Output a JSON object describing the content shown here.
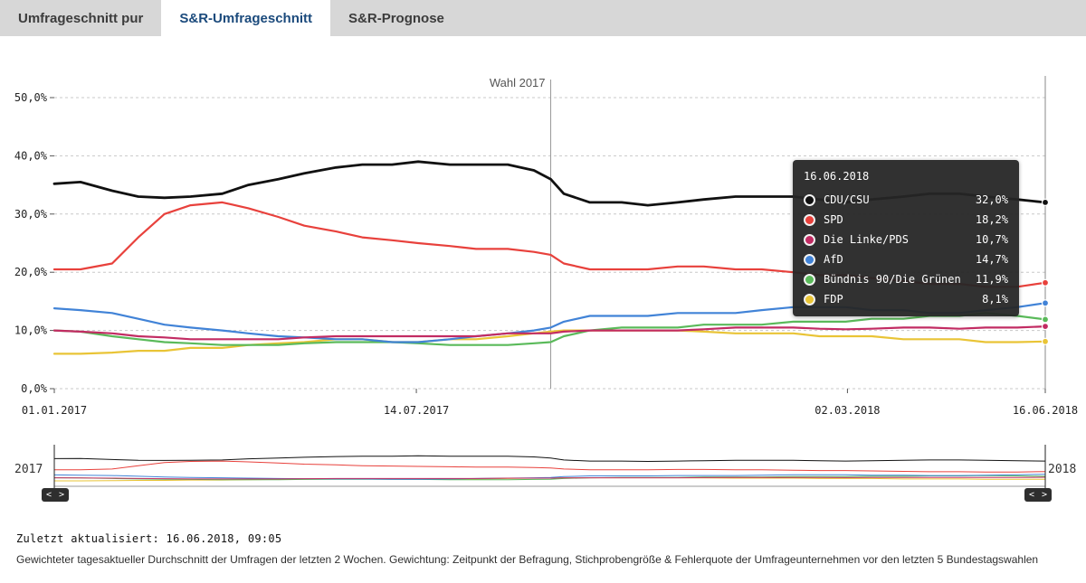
{
  "tabs": [
    {
      "label": "Umfrageschnitt pur",
      "active": false
    },
    {
      "label": "S&R-Umfrageschnitt",
      "active": true
    },
    {
      "label": "S&R-Prognose",
      "active": false
    }
  ],
  "chart_data": {
    "type": "line",
    "title": "",
    "xlabel": "",
    "ylabel": "",
    "ylim": [
      0,
      50
    ],
    "grid": "dashed horizontal",
    "legend_position": "floating tooltip top-right",
    "y_ticks": [
      {
        "value": 0,
        "label": "0,0%"
      },
      {
        "value": 10,
        "label": "10,0%"
      },
      {
        "value": 20,
        "label": "20,0%"
      },
      {
        "value": 30,
        "label": "30,0%"
      },
      {
        "value": 40,
        "label": "40,0%"
      },
      {
        "value": 50,
        "label": "50,0%"
      }
    ],
    "x_range": [
      "2017-01-01",
      "2018-06-16"
    ],
    "x_ticks": [
      {
        "date": "2017-01-01",
        "label": "01.01.2017"
      },
      {
        "date": "2017-07-14",
        "label": "14.07.2017"
      },
      {
        "date": "2018-03-02",
        "label": "02.03.2018"
      },
      {
        "date": "2018-06-16",
        "label": "16.06.2018"
      }
    ],
    "annotation": {
      "date": "2017-09-24",
      "label": "Wahl 2017"
    },
    "hover_date": "2018-06-16",
    "x": [
      "2017-01-01",
      "2017-01-15",
      "2017-02-01",
      "2017-02-15",
      "2017-03-01",
      "2017-03-15",
      "2017-04-01",
      "2017-04-15",
      "2017-05-01",
      "2017-05-15",
      "2017-06-01",
      "2017-06-15",
      "2017-07-01",
      "2017-07-15",
      "2017-08-01",
      "2017-08-15",
      "2017-09-01",
      "2017-09-15",
      "2017-09-24",
      "2017-10-01",
      "2017-10-15",
      "2017-11-01",
      "2017-11-15",
      "2017-12-01",
      "2017-12-15",
      "2018-01-01",
      "2018-01-15",
      "2018-02-01",
      "2018-02-15",
      "2018-03-01",
      "2018-03-15",
      "2018-04-01",
      "2018-04-15",
      "2018-05-01",
      "2018-05-15",
      "2018-06-01",
      "2018-06-16"
    ],
    "series": [
      {
        "name": "CDU/CSU",
        "color": "#111111",
        "values": [
          35.2,
          35.5,
          34.0,
          33.0,
          32.8,
          33.0,
          33.5,
          35.0,
          36.0,
          37.0,
          38.0,
          38.5,
          38.5,
          39.0,
          38.5,
          38.5,
          38.5,
          37.5,
          36.0,
          33.5,
          32.0,
          32.0,
          31.5,
          32.0,
          32.5,
          33.0,
          33.0,
          33.0,
          32.5,
          32.0,
          32.5,
          33.0,
          33.5,
          33.5,
          33.0,
          32.5,
          32.0
        ]
      },
      {
        "name": "SPD",
        "color": "#e8413c",
        "values": [
          20.5,
          20.5,
          21.5,
          26.0,
          30.0,
          31.5,
          32.0,
          31.0,
          29.5,
          28.0,
          27.0,
          26.0,
          25.5,
          25.0,
          24.5,
          24.0,
          24.0,
          23.5,
          23.0,
          21.5,
          20.5,
          20.5,
          20.5,
          21.0,
          21.0,
          20.5,
          20.5,
          20.0,
          19.5,
          19.5,
          19.0,
          18.5,
          18.0,
          18.0,
          17.5,
          17.5,
          18.2
        ]
      },
      {
        "name": "Die Linke/PDS",
        "color": "#c22c63",
        "values": [
          10.0,
          9.8,
          9.5,
          9.0,
          8.8,
          8.5,
          8.5,
          8.5,
          8.5,
          8.8,
          9.0,
          9.0,
          9.0,
          9.0,
          9.0,
          9.0,
          9.5,
          9.5,
          9.5,
          9.8,
          10.0,
          10.0,
          10.0,
          10.0,
          10.2,
          10.5,
          10.5,
          10.5,
          10.3,
          10.2,
          10.3,
          10.5,
          10.5,
          10.3,
          10.5,
          10.5,
          10.7
        ]
      },
      {
        "name": "AfD",
        "color": "#4183d7",
        "values": [
          13.8,
          13.5,
          13.0,
          12.0,
          11.0,
          10.5,
          10.0,
          9.5,
          9.0,
          8.8,
          8.5,
          8.5,
          8.0,
          8.0,
          8.5,
          9.0,
          9.5,
          10.0,
          10.5,
          11.5,
          12.5,
          12.5,
          12.5,
          13.0,
          13.0,
          13.0,
          13.5,
          14.0,
          14.0,
          14.0,
          13.5,
          13.5,
          13.0,
          13.0,
          13.5,
          14.0,
          14.7
        ]
      },
      {
        "name": "Bündnis 90/Die Grünen",
        "color": "#5aba5a",
        "values": [
          10.0,
          9.8,
          9.0,
          8.5,
          8.0,
          7.8,
          7.5,
          7.5,
          7.5,
          7.8,
          8.0,
          8.0,
          8.0,
          7.8,
          7.5,
          7.5,
          7.5,
          7.8,
          8.0,
          9.0,
          10.0,
          10.5,
          10.5,
          10.5,
          11.0,
          11.0,
          11.0,
          11.5,
          11.5,
          11.5,
          12.0,
          12.0,
          12.5,
          12.5,
          13.0,
          12.5,
          11.9
        ]
      },
      {
        "name": "FDP",
        "color": "#e9c436",
        "values": [
          6.0,
          6.0,
          6.2,
          6.5,
          6.5,
          7.0,
          7.0,
          7.5,
          7.8,
          8.0,
          8.5,
          8.5,
          8.0,
          8.0,
          8.5,
          8.5,
          9.0,
          9.5,
          9.8,
          10.0,
          10.0,
          10.0,
          10.0,
          10.0,
          9.8,
          9.5,
          9.5,
          9.5,
          9.0,
          9.0,
          9.0,
          8.5,
          8.5,
          8.5,
          8.0,
          8.0,
          8.1
        ]
      }
    ]
  },
  "tooltip": {
    "date": "16.06.2018",
    "rows": [
      {
        "party": "CDU/CSU",
        "value": "32,0%"
      },
      {
        "party": "SPD",
        "value": "18,2%"
      },
      {
        "party": "Die Linke/PDS",
        "value": "10,7%"
      },
      {
        "party": "AfD",
        "value": "14,7%"
      },
      {
        "party": "Bündnis 90/Die Grünen",
        "value": "11,9%"
      },
      {
        "party": "FDP",
        "value": "8,1%"
      }
    ]
  },
  "navigator": {
    "left_label": "2017",
    "right_label": "2018",
    "prev": "<",
    "next": ">"
  },
  "footer": {
    "updated": "Zuletzt aktualisiert: 16.06.2018, 09:05",
    "description": "Gewichteter tagesaktueller Durchschnitt der Umfragen der letzten 2 Wochen. Gewichtung: Zeitpunkt der Befragung, Stichprobengröße & Fehlerquote der Umfrageunternehmen vor den letzten 5 Bundestagswahlen"
  }
}
